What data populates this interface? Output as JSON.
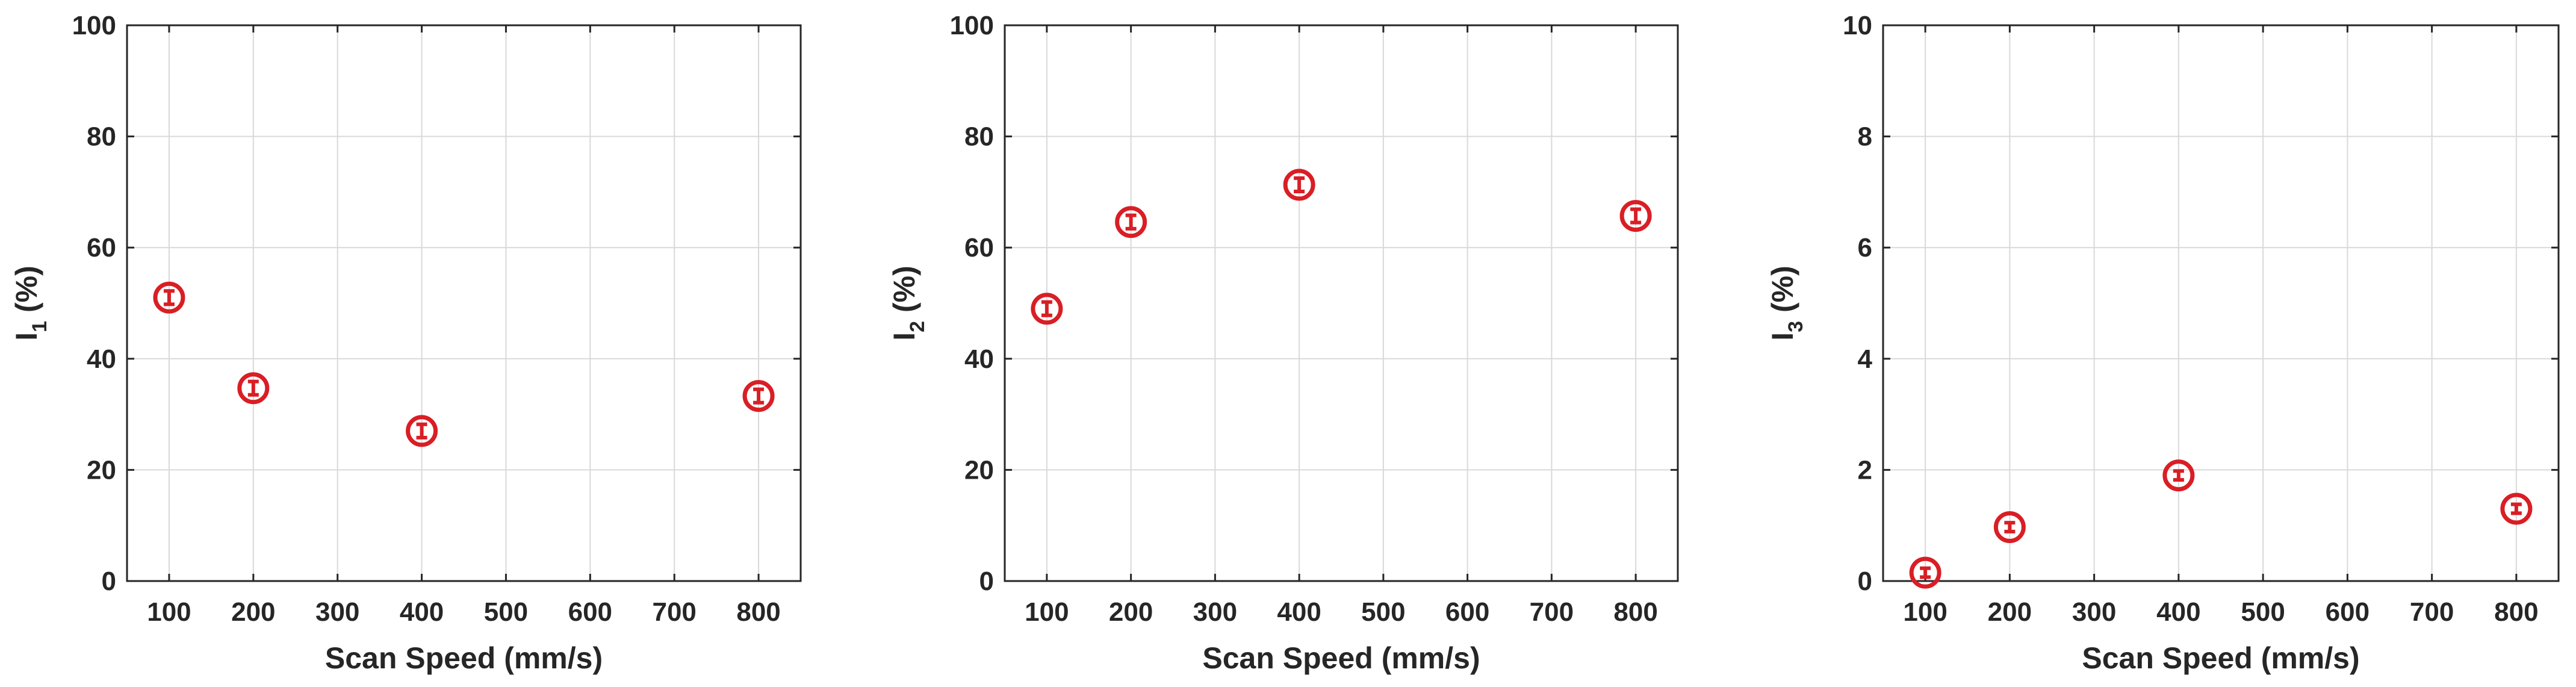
{
  "colors": {
    "marker": "#d91e25"
  },
  "chart_data": [
    {
      "type": "scatter",
      "title": "",
      "xlabel": "Scan Speed (mm/s)",
      "ylabel": {
        "main": "I",
        "sub": "1",
        "suffix": " (%)"
      },
      "xlim": [
        50,
        850
      ],
      "ylim": [
        0,
        100
      ],
      "xticks": [
        100,
        200,
        300,
        400,
        500,
        600,
        700,
        800
      ],
      "yticks": [
        0,
        20,
        40,
        60,
        80,
        100
      ],
      "grid": true,
      "series": [
        {
          "x": [
            100,
            200,
            400,
            800
          ],
          "y": [
            51,
            34.7,
            27,
            33.3
          ],
          "err": [
            1.2,
            1.2,
            1.2,
            1.2
          ]
        }
      ]
    },
    {
      "type": "scatter",
      "title": "",
      "xlabel": "Scan Speed (mm/s)",
      "ylabel": {
        "main": "I",
        "sub": "2",
        "suffix": " (%)"
      },
      "xlim": [
        50,
        850
      ],
      "ylim": [
        0,
        100
      ],
      "xticks": [
        100,
        200,
        300,
        400,
        500,
        600,
        700,
        800
      ],
      "yticks": [
        0,
        20,
        40,
        60,
        80,
        100
      ],
      "grid": true,
      "series": [
        {
          "x": [
            100,
            200,
            400,
            800
          ],
          "y": [
            49,
            64.6,
            71.3,
            65.7
          ],
          "err": [
            1.2,
            1.2,
            1.2,
            1.2
          ]
        }
      ]
    },
    {
      "type": "scatter",
      "title": "",
      "xlabel": "Scan Speed (mm/s)",
      "ylabel": {
        "main": "I",
        "sub": "3",
        "suffix": " (%)"
      },
      "xlim": [
        50,
        850
      ],
      "ylim": [
        0,
        10
      ],
      "xticks": [
        100,
        200,
        300,
        400,
        500,
        600,
        700,
        800
      ],
      "yticks": [
        0,
        2,
        4,
        6,
        8,
        10
      ],
      "grid": true,
      "series": [
        {
          "x": [
            100,
            200,
            400,
            800
          ],
          "y": [
            0.15,
            0.97,
            1.9,
            1.3
          ],
          "err": [
            0.08,
            0.08,
            0.08,
            0.08
          ]
        }
      ]
    }
  ]
}
